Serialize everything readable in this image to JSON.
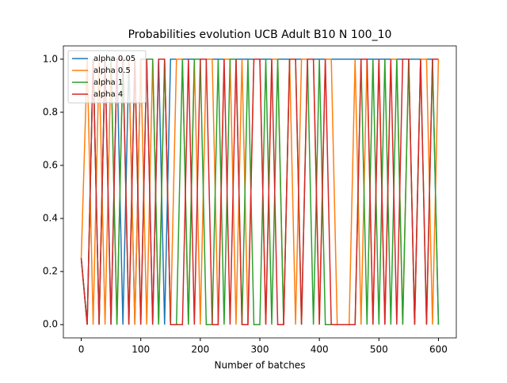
{
  "chart_data": {
    "type": "line",
    "title": "Probabilities evolution UCB Adult B10 N 100_10",
    "x_label": "Number of batches",
    "x": [
      0,
      10,
      20,
      30,
      40,
      50,
      60,
      70,
      80,
      90,
      100,
      110,
      120,
      130,
      140,
      150,
      160,
      170,
      180,
      190,
      200,
      210,
      220,
      230,
      240,
      250,
      260,
      270,
      280,
      290,
      300,
      310,
      320,
      330,
      340,
      350,
      360,
      370,
      380,
      390,
      400,
      410,
      420,
      430,
      440,
      450,
      460,
      470,
      480,
      490,
      500,
      510,
      520,
      530,
      540,
      550,
      560,
      570,
      580,
      590,
      600
    ],
    "series": [
      {
        "name": "alpha 0.05",
        "color": "#1f77b4",
        "values": [
          0.25,
          0,
          1,
          0,
          1,
          0,
          1,
          0,
          1,
          0,
          1,
          1,
          0,
          1,
          0,
          1,
          1,
          1,
          1,
          1,
          1,
          1,
          1,
          1,
          1,
          1,
          1,
          1,
          1,
          1,
          1,
          1,
          1,
          1,
          1,
          1,
          1,
          1,
          1,
          1,
          1,
          1,
          1,
          1,
          1,
          1,
          1,
          1,
          1,
          1,
          1,
          1,
          1,
          1,
          1,
          1,
          1,
          1,
          1,
          1,
          0
        ]
      },
      {
        "name": "alpha 0.5",
        "color": "#ff7f0e",
        "values": [
          0.25,
          1,
          0,
          1,
          0,
          1,
          0,
          1,
          1,
          0,
          1,
          0,
          1,
          0,
          1,
          0,
          1,
          1,
          0,
          1,
          0,
          1,
          1,
          0,
          1,
          1,
          0,
          1,
          0,
          1,
          1,
          0,
          1,
          1,
          0,
          1,
          0,
          1,
          1,
          1,
          0,
          1,
          1,
          0,
          0,
          0,
          1,
          0,
          1,
          0,
          1,
          0,
          1,
          1,
          0,
          1,
          0,
          1,
          1,
          0,
          1
        ]
      },
      {
        "name": "alpha 1",
        "color": "#2ca02c",
        "values": [
          0.25,
          0,
          1,
          0,
          1,
          1,
          0,
          1,
          0,
          1,
          0,
          1,
          1,
          0,
          1,
          0,
          0,
          1,
          0,
          1,
          1,
          0,
          0,
          1,
          0,
          1,
          1,
          0,
          1,
          0,
          0,
          1,
          0,
          1,
          0,
          1,
          1,
          0,
          1,
          0,
          1,
          0,
          0,
          0,
          0,
          0,
          0,
          1,
          0,
          1,
          0,
          1,
          0,
          1,
          0,
          1,
          0,
          1,
          0,
          1,
          0
        ]
      },
      {
        "name": "alpha 4",
        "color": "#d62728",
        "values": [
          0.25,
          0,
          1,
          0,
          1,
          0,
          1,
          1,
          0,
          1,
          0,
          1,
          0,
          1,
          1,
          0,
          0,
          0,
          1,
          0,
          1,
          1,
          0,
          0,
          1,
          0,
          1,
          0,
          0,
          1,
          1,
          0,
          1,
          0,
          0,
          1,
          1,
          0,
          1,
          1,
          0,
          1,
          0,
          0,
          0,
          0,
          0,
          1,
          1,
          0,
          1,
          0,
          1,
          0,
          1,
          1,
          0,
          1,
          0,
          1,
          1
        ]
      }
    ],
    "xlim": [
      -30,
      630
    ],
    "ylim": [
      -0.05,
      1.05
    ],
    "xticks": [
      0,
      100,
      200,
      300,
      400,
      500,
      600
    ],
    "yticks": [
      {
        "value": 0,
        "label": "0.0"
      },
      {
        "value": 0.2,
        "label": "0.2"
      },
      {
        "value": 0.4,
        "label": "0.4"
      },
      {
        "value": 0.6,
        "label": "0.6"
      },
      {
        "value": 0.8,
        "label": "0.8"
      },
      {
        "value": 1,
        "label": "1.0"
      }
    ],
    "legend": "upper left"
  }
}
